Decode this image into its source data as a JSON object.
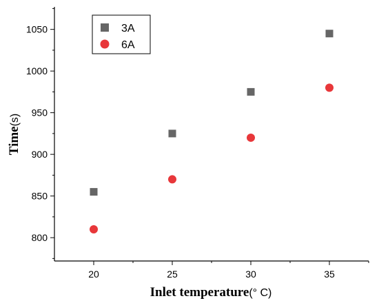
{
  "chart_data": {
    "type": "scatter",
    "xlabel": "Inlet temperature",
    "xlabel_unit": "(° C)",
    "ylabel": "Time",
    "ylabel_unit": "(s)",
    "x": [
      20,
      25,
      30,
      35
    ],
    "xlim": [
      17.5,
      37.5
    ],
    "ylim": [
      772,
      1077
    ],
    "xticks": [
      20,
      25,
      30,
      35
    ],
    "yticks": [
      800,
      850,
      900,
      950,
      1000,
      1050
    ],
    "grid": false,
    "legend_position": "top-left",
    "series": [
      {
        "name": "3A",
        "marker": "square",
        "color": "#666666",
        "values": [
          855,
          925,
          975,
          1045
        ]
      },
      {
        "name": "6A",
        "marker": "circle",
        "color": "#e8373a",
        "values": [
          810,
          870,
          920,
          980
        ]
      }
    ]
  }
}
